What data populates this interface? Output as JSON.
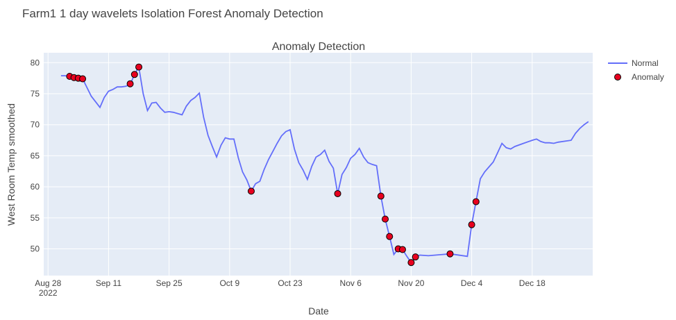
{
  "page_title": "Farm1 1 day wavelets Isolation Forest Anomaly Detection",
  "chart_data": {
    "type": "line",
    "title": "Anomaly Detection",
    "xlabel": "Date",
    "ylabel": "West Room Temp smoothed",
    "xlim": [
      "2022-08-27",
      "2023-01-01"
    ],
    "ylim": [
      45.7,
      81.6
    ],
    "x_ticks": [
      {
        "date": "2022-08-28",
        "label": "Aug 28",
        "sub": "2022"
      },
      {
        "date": "2022-09-11",
        "label": "Sep 11",
        "sub": ""
      },
      {
        "date": "2022-09-25",
        "label": "Sep 25",
        "sub": ""
      },
      {
        "date": "2022-10-09",
        "label": "Oct 9",
        "sub": ""
      },
      {
        "date": "2022-10-23",
        "label": "Oct 23",
        "sub": ""
      },
      {
        "date": "2022-11-06",
        "label": "Nov 6",
        "sub": ""
      },
      {
        "date": "2022-11-20",
        "label": "Nov 20",
        "sub": ""
      },
      {
        "date": "2022-12-04",
        "label": "Dec 4",
        "sub": ""
      },
      {
        "date": "2022-12-18",
        "label": "Dec 18",
        "sub": ""
      }
    ],
    "y_ticks": [
      50,
      55,
      60,
      65,
      70,
      75,
      80
    ],
    "grid": true,
    "legend_position": "top-right",
    "series": [
      {
        "name": "Normal",
        "mode": "line",
        "color": "#636efa",
        "points": [
          [
            "2022-08-31",
            77.9
          ],
          [
            "2022-09-01",
            77.9
          ],
          [
            "2022-09-02",
            77.8
          ],
          [
            "2022-09-03",
            77.6
          ],
          [
            "2022-09-04",
            77.5
          ],
          [
            "2022-09-05",
            77.4
          ],
          [
            "2022-09-06",
            76.0
          ],
          [
            "2022-09-07",
            74.6
          ],
          [
            "2022-09-08",
            73.7
          ],
          [
            "2022-09-09",
            72.8
          ],
          [
            "2022-09-10",
            74.4
          ],
          [
            "2022-09-11",
            75.4
          ],
          [
            "2022-09-12",
            75.7
          ],
          [
            "2022-09-13",
            76.1
          ],
          [
            "2022-09-14",
            76.1
          ],
          [
            "2022-09-15",
            76.2
          ],
          [
            "2022-09-16",
            76.5
          ],
          [
            "2022-09-17",
            78.1
          ],
          [
            "2022-09-18",
            79.3
          ],
          [
            "2022-09-19",
            75.0
          ],
          [
            "2022-09-20",
            72.3
          ],
          [
            "2022-09-21",
            73.5
          ],
          [
            "2022-09-22",
            73.6
          ],
          [
            "2022-09-23",
            72.7
          ],
          [
            "2022-09-24",
            72.0
          ],
          [
            "2022-09-25",
            72.1
          ],
          [
            "2022-09-26",
            72.0
          ],
          [
            "2022-09-27",
            71.8
          ],
          [
            "2022-09-28",
            71.6
          ],
          [
            "2022-09-29",
            73.0
          ],
          [
            "2022-09-30",
            73.9
          ],
          [
            "2022-10-01",
            74.4
          ],
          [
            "2022-10-02",
            75.1
          ],
          [
            "2022-10-03",
            71.2
          ],
          [
            "2022-10-04",
            68.3
          ],
          [
            "2022-10-05",
            66.5
          ],
          [
            "2022-10-06",
            64.8
          ],
          [
            "2022-10-07",
            66.7
          ],
          [
            "2022-10-08",
            67.9
          ],
          [
            "2022-10-09",
            67.7
          ],
          [
            "2022-10-10",
            67.7
          ],
          [
            "2022-10-11",
            64.7
          ],
          [
            "2022-10-12",
            62.4
          ],
          [
            "2022-10-13",
            61.1
          ],
          [
            "2022-10-14",
            59.3
          ],
          [
            "2022-10-15",
            60.5
          ],
          [
            "2022-10-16",
            60.9
          ],
          [
            "2022-10-17",
            62.8
          ],
          [
            "2022-10-18",
            64.4
          ],
          [
            "2022-10-19",
            65.7
          ],
          [
            "2022-10-20",
            67.0
          ],
          [
            "2022-10-21",
            68.2
          ],
          [
            "2022-10-22",
            68.9
          ],
          [
            "2022-10-23",
            69.2
          ],
          [
            "2022-10-24",
            66.1
          ],
          [
            "2022-10-25",
            63.9
          ],
          [
            "2022-10-26",
            62.7
          ],
          [
            "2022-10-27",
            61.2
          ],
          [
            "2022-10-28",
            63.3
          ],
          [
            "2022-10-29",
            64.8
          ],
          [
            "2022-10-30",
            65.2
          ],
          [
            "2022-10-31",
            65.9
          ],
          [
            "2022-11-01",
            64.1
          ],
          [
            "2022-11-02",
            63.0
          ],
          [
            "2022-11-03",
            58.9
          ],
          [
            "2022-11-04",
            62.0
          ],
          [
            "2022-11-05",
            63.1
          ],
          [
            "2022-11-06",
            64.6
          ],
          [
            "2022-11-07",
            65.2
          ],
          [
            "2022-11-08",
            66.2
          ],
          [
            "2022-11-09",
            64.8
          ],
          [
            "2022-11-10",
            63.9
          ],
          [
            "2022-11-11",
            63.6
          ],
          [
            "2022-11-12",
            63.4
          ],
          [
            "2022-11-13",
            58.5
          ],
          [
            "2022-11-14",
            54.8
          ],
          [
            "2022-11-15",
            52.0
          ],
          [
            "2022-11-16",
            49.1
          ],
          [
            "2022-11-17",
            50.0
          ],
          [
            "2022-11-18",
            49.9
          ],
          [
            "2022-11-19",
            48.8
          ],
          [
            "2022-11-20",
            47.8
          ],
          [
            "2022-11-21",
            48.7
          ],
          [
            "2022-11-22",
            49.0
          ],
          [
            "2022-11-24",
            48.9
          ],
          [
            "2022-11-29",
            49.2
          ],
          [
            "2022-12-03",
            48.8
          ],
          [
            "2022-12-04",
            53.9
          ],
          [
            "2022-12-05",
            57.6
          ],
          [
            "2022-12-06",
            61.3
          ],
          [
            "2022-12-07",
            62.4
          ],
          [
            "2022-12-08",
            63.2
          ],
          [
            "2022-12-09",
            64.0
          ],
          [
            "2022-12-10",
            65.5
          ],
          [
            "2022-12-11",
            67.0
          ],
          [
            "2022-12-12",
            66.3
          ],
          [
            "2022-12-13",
            66.1
          ],
          [
            "2022-12-14",
            66.5
          ],
          [
            "2022-12-16",
            67.0
          ],
          [
            "2022-12-18",
            67.5
          ],
          [
            "2022-12-19",
            67.7
          ],
          [
            "2022-12-20",
            67.3
          ],
          [
            "2022-12-21",
            67.1
          ],
          [
            "2022-12-22",
            67.1
          ],
          [
            "2022-12-23",
            67.0
          ],
          [
            "2022-12-24",
            67.2
          ],
          [
            "2022-12-26",
            67.4
          ],
          [
            "2022-12-27",
            67.5
          ],
          [
            "2022-12-28",
            68.6
          ],
          [
            "2022-12-29",
            69.4
          ],
          [
            "2022-12-30",
            70.0
          ],
          [
            "2022-12-31",
            70.5
          ]
        ]
      },
      {
        "name": "Anomaly",
        "mode": "markers",
        "color": "#e8001f",
        "points": [
          [
            "2022-09-02",
            77.8
          ],
          [
            "2022-09-03",
            77.6
          ],
          [
            "2022-09-04",
            77.5
          ],
          [
            "2022-09-05",
            77.4
          ],
          [
            "2022-09-16",
            76.6
          ],
          [
            "2022-09-17",
            78.1
          ],
          [
            "2022-09-18",
            79.3
          ],
          [
            "2022-10-14",
            59.3
          ],
          [
            "2022-11-03",
            58.9
          ],
          [
            "2022-11-13",
            58.5
          ],
          [
            "2022-11-14",
            54.8
          ],
          [
            "2022-11-15",
            52.0
          ],
          [
            "2022-11-17",
            50.0
          ],
          [
            "2022-11-18",
            49.9
          ],
          [
            "2022-11-20",
            47.8
          ],
          [
            "2022-11-21",
            48.7
          ],
          [
            "2022-11-29",
            49.2
          ],
          [
            "2022-12-04",
            53.9
          ],
          [
            "2022-12-05",
            57.6
          ]
        ]
      }
    ]
  }
}
